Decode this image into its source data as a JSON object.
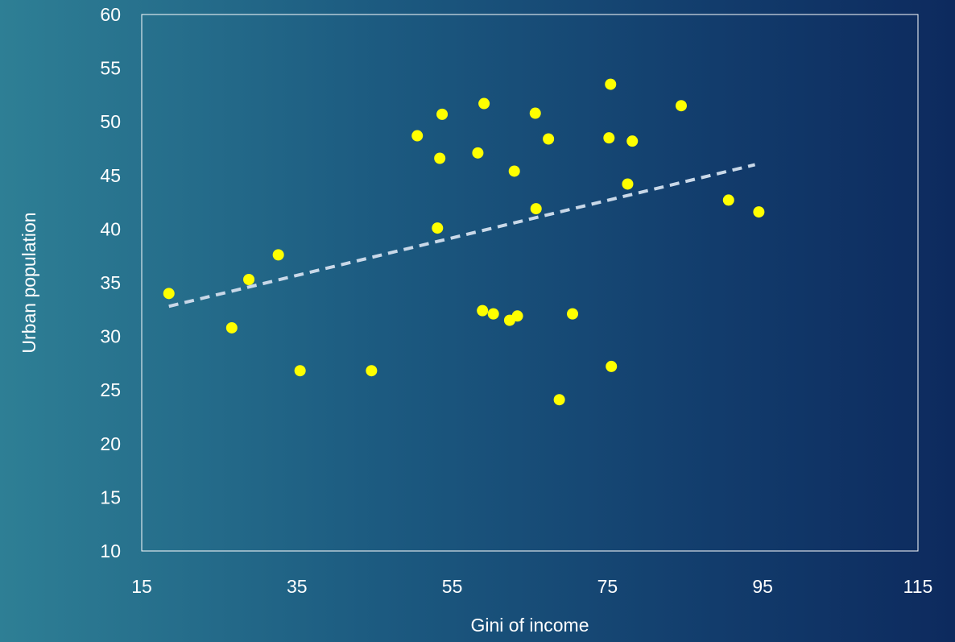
{
  "chart_data": {
    "type": "scatter",
    "title": "",
    "xlabel": "Gini of income",
    "ylabel": "Urban population",
    "xlim": [
      15,
      115
    ],
    "ylim": [
      10,
      60
    ],
    "xticks": [
      15,
      35,
      55,
      75,
      95,
      115
    ],
    "yticks": [
      10,
      15,
      20,
      25,
      30,
      35,
      40,
      45,
      50,
      55,
      60
    ],
    "grid": false,
    "legend": "none",
    "points": [
      {
        "x": 18.5,
        "y": 34.0
      },
      {
        "x": 26.6,
        "y": 30.8
      },
      {
        "x": 28.8,
        "y": 35.3
      },
      {
        "x": 32.6,
        "y": 37.6
      },
      {
        "x": 35.4,
        "y": 26.8
      },
      {
        "x": 44.6,
        "y": 26.8
      },
      {
        "x": 50.5,
        "y": 48.7
      },
      {
        "x": 53.1,
        "y": 40.1
      },
      {
        "x": 53.4,
        "y": 46.6
      },
      {
        "x": 53.7,
        "y": 50.7
      },
      {
        "x": 58.3,
        "y": 47.1
      },
      {
        "x": 58.9,
        "y": 32.4
      },
      {
        "x": 59.1,
        "y": 51.7
      },
      {
        "x": 60.3,
        "y": 32.1
      },
      {
        "x": 62.4,
        "y": 31.5
      },
      {
        "x": 63.0,
        "y": 45.4
      },
      {
        "x": 63.4,
        "y": 31.9
      },
      {
        "x": 65.7,
        "y": 50.8
      },
      {
        "x": 65.8,
        "y": 41.9
      },
      {
        "x": 67.4,
        "y": 48.4
      },
      {
        "x": 68.8,
        "y": 24.1
      },
      {
        "x": 70.5,
        "y": 32.1
      },
      {
        "x": 75.2,
        "y": 48.5
      },
      {
        "x": 75.4,
        "y": 53.5
      },
      {
        "x": 75.5,
        "y": 27.2
      },
      {
        "x": 77.6,
        "y": 44.2
      },
      {
        "x": 78.2,
        "y": 48.2
      },
      {
        "x": 84.5,
        "y": 51.5
      },
      {
        "x": 90.6,
        "y": 42.7
      },
      {
        "x": 94.5,
        "y": 41.6
      }
    ],
    "trendline": {
      "x": [
        18.5,
        94.0
      ],
      "y": [
        32.8,
        46.0
      ]
    },
    "colors": {
      "points": "#ffff00",
      "trendline": "#c9d8e8",
      "axes": "#ffffff",
      "text": "#ffffff"
    }
  }
}
